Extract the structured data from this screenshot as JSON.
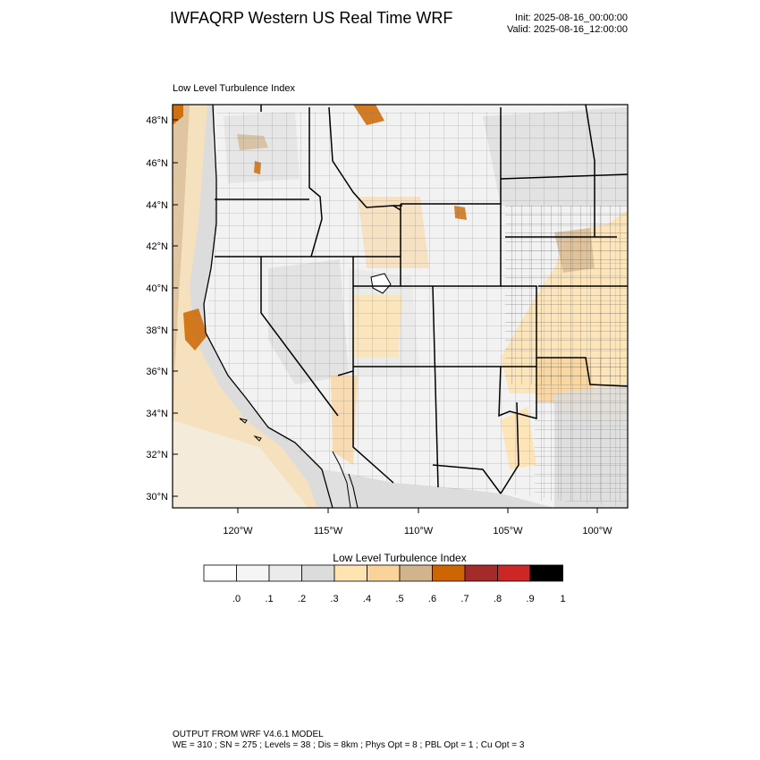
{
  "header": {
    "title": "IWFAQRP Western US Real Time WRF",
    "init": "Init: 2025-08-16_00:00:00",
    "valid": "Valid: 2025-08-16_12:00:00"
  },
  "map": {
    "field_label": "Low Level Turbulence Index",
    "lat_labels": [
      "48°N",
      "46°N",
      "44°N",
      "42°N",
      "40°N",
      "38°N",
      "36°N",
      "34°N",
      "32°N",
      "30°N"
    ],
    "lon_labels": [
      "120°W",
      "115°W",
      "110°W",
      "105°W",
      "100°W"
    ],
    "colors": {
      "ocean_background": "#dcdcdc",
      "land_background": "#f2f2f2",
      "state_border": "#000000",
      "county_border": "#555555"
    }
  },
  "colorbar": {
    "title": "Low Level Turbulence Index",
    "tick_labels": [
      ".0",
      ".1",
      ".2",
      ".3",
      ".4",
      ".5",
      ".6",
      ".7",
      ".8",
      ".9",
      "1"
    ],
    "colors": [
      "#ffffff",
      "#f5f5f5",
      "#ebebeb",
      "#dcdcdc",
      "#ffe3b0",
      "#f9d39a",
      "#d2b48c",
      "#cd6600",
      "#a52a2a",
      "#cd2626",
      "#000000"
    ]
  },
  "footer": {
    "line1": "OUTPUT FROM WRF V4.6.1 MODEL",
    "line2": "WE = 310 ; SN = 275 ; Levels = 38 ; Dis = 8km ; Phys Opt = 8 ; PBL Opt = 1 ; Cu Opt = 3"
  }
}
